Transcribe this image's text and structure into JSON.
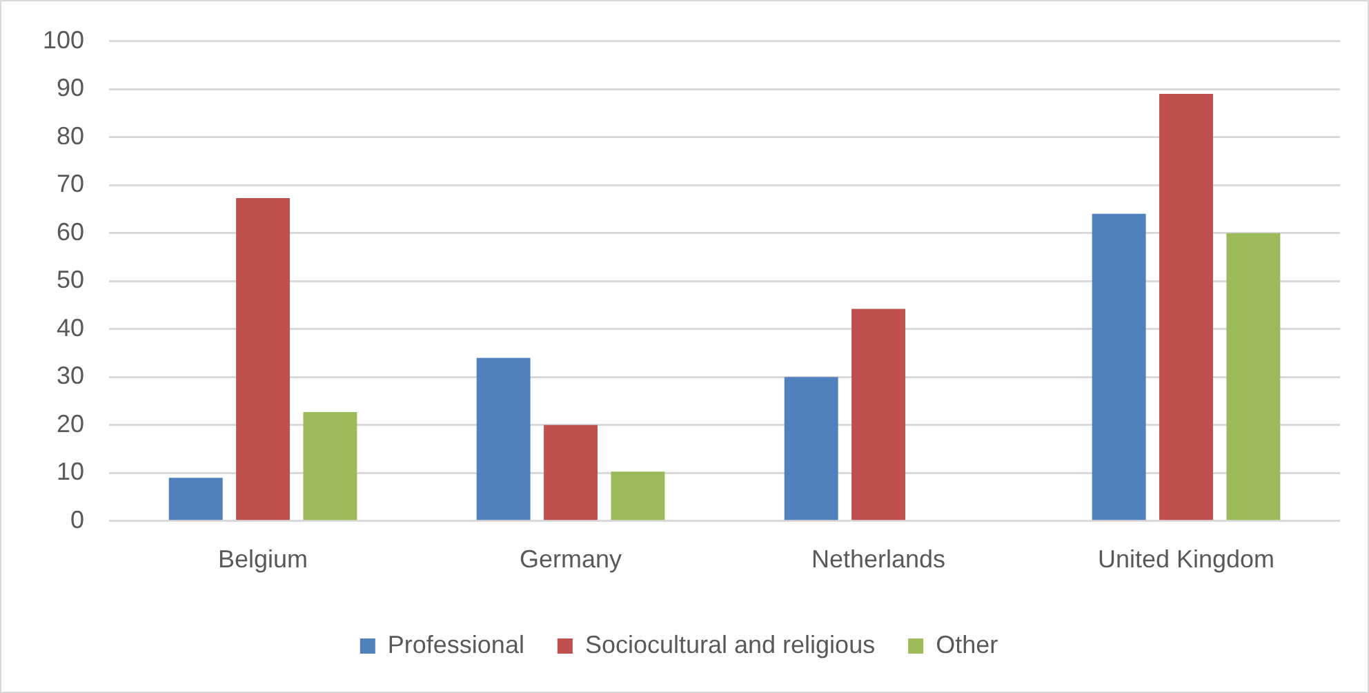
{
  "chart_data": {
    "type": "bar",
    "categories": [
      "Belgium",
      "Germany",
      "Netherlands",
      "United Kingdom"
    ],
    "series": [
      {
        "name": "Professional",
        "color": "#4f81bd",
        "values": [
          9,
          34,
          30,
          64
        ]
      },
      {
        "name": "Sociocultural and religious",
        "color": "#c0504d",
        "values": [
          67.3,
          20,
          44.2,
          89
        ]
      },
      {
        "name": "Other",
        "color": "#9bbb59",
        "values": [
          22.7,
          10.3,
          null,
          60
        ]
      }
    ],
    "ylim": [
      0,
      100
    ],
    "yticks": [
      0,
      10,
      20,
      30,
      40,
      50,
      60,
      70,
      80,
      90,
      100
    ],
    "grid": "y",
    "legend": "bottom"
  }
}
